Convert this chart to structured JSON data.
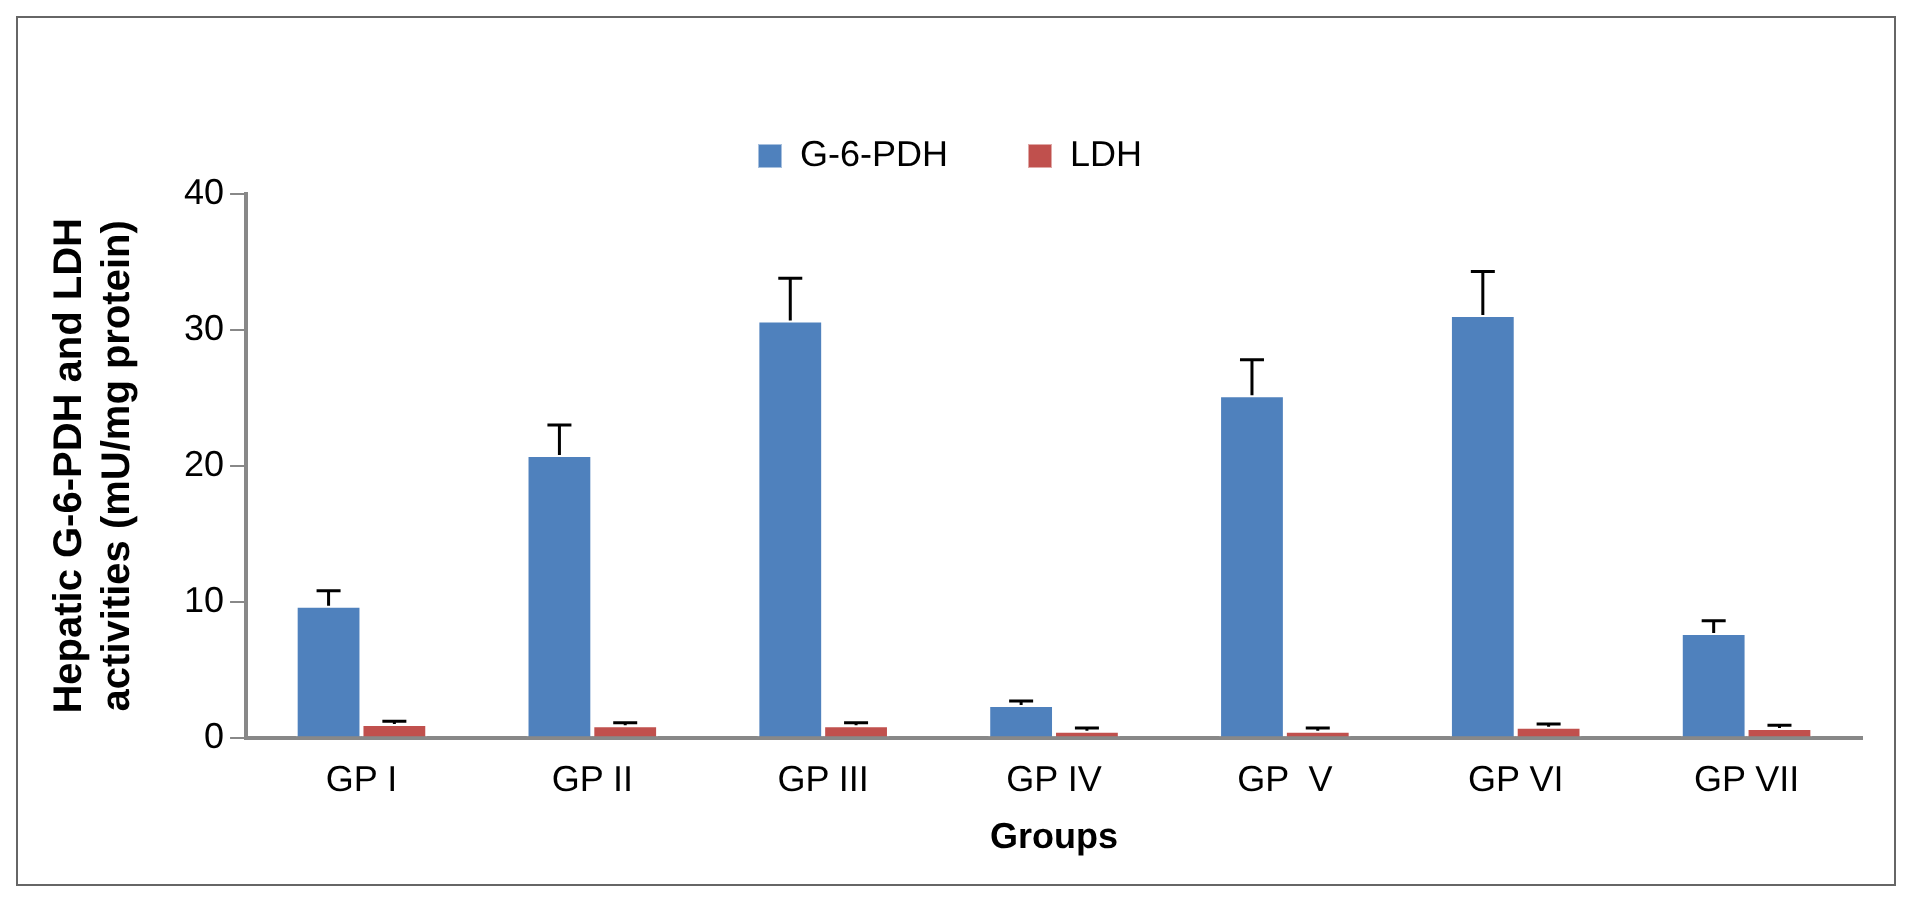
{
  "chart_data": {
    "type": "bar",
    "xlabel": "Groups",
    "ylabel": "Hepatic G-6-PDH and LDH activities (mU/mg protein)",
    "categories": [
      "GP I",
      "GP II",
      "GP III",
      "GP IV",
      "GP  V",
      "GP VI",
      "GP VII"
    ],
    "series": [
      {
        "name": "G-6-PDH",
        "color": "#4f81bd",
        "values": [
          9.7,
          20.8,
          30.7,
          2.4,
          25.2,
          31.1,
          7.7
        ],
        "errors": [
          1.1,
          2.2,
          3.1,
          0.3,
          2.6,
          3.2,
          0.9
        ]
      },
      {
        "name": "LDH",
        "color": "#c0504d",
        "values": [
          1.0,
          0.9,
          0.9,
          0.5,
          0.5,
          0.8,
          0.7
        ],
        "errors": [
          0.2,
          0.2,
          0.2,
          0.2,
          0.2,
          0.2,
          0.2
        ]
      }
    ],
    "ylim": [
      0,
      40
    ],
    "yticks": [
      0,
      10,
      20,
      30,
      40
    ],
    "grid": false,
    "legend": "top"
  }
}
